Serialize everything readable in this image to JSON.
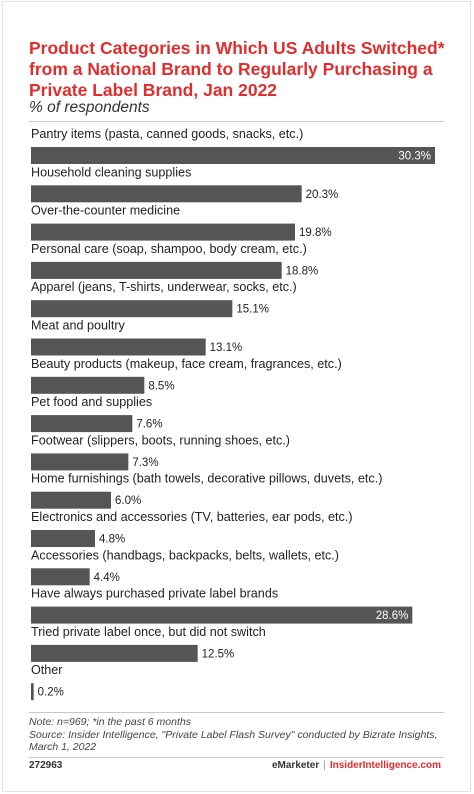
{
  "title": "Product Categories in Which US Adults Switched* from a National Brand to Regularly Purchasing a Private Label Brand, Jan 2022",
  "subtitle": "% of respondents",
  "colors": {
    "bar": "#555555",
    "title": "#e32d2d"
  },
  "chart_data": {
    "type": "bar",
    "orientation": "horizontal",
    "title": "Product Categories in Which US Adults Switched* from a National Brand to Regularly Purchasing a Private Label Brand, Jan 2022",
    "ylabel": "% of respondents",
    "xlim": [
      0,
      30.3
    ],
    "grid": false,
    "categories": [
      "Pantry items (pasta, canned goods, snacks, etc.)",
      "Household cleaning supplies",
      "Over-the-counter medicine",
      "Personal care (soap, shampoo, body cream, etc.)",
      "Apparel (jeans, T-shirts, underwear, socks, etc.)",
      "Meat and poultry",
      "Beauty products (makeup, face cream, fragrances, etc.)",
      "Pet food and supplies",
      "Footwear (slippers, boots, running shoes, etc.)",
      "Home furnishings (bath towels, decorative pillows, duvets, etc.)",
      "Electronics and accessories (TV, batteries, ear pods, etc.)",
      "Accessories (handbags, backpacks, belts, wallets, etc.)",
      "Have always purchased private label brands",
      "Tried private label once, but did not switch",
      "Other"
    ],
    "values": [
      30.3,
      20.3,
      19.8,
      18.8,
      15.1,
      13.1,
      8.5,
      7.6,
      7.3,
      6.0,
      4.8,
      4.4,
      28.6,
      12.5,
      0.2
    ],
    "value_labels": [
      "30.3%",
      "20.3%",
      "19.8%",
      "18.8%",
      "15.1%",
      "13.1%",
      "8.5%",
      "7.6%",
      "7.3%",
      "6.0%",
      "4.8%",
      "4.4%",
      "28.6%",
      "12.5%",
      "0.2%"
    ]
  },
  "notes": {
    "note": "Note: n=969; *in the past 6 months",
    "source": "Source: Insider Intelligence, \"Private Label Flash Survey\" conducted by Bizrate Insights, March 1, 2022"
  },
  "footer": {
    "chart_id": "272963",
    "brand_left": "eMarketer",
    "separator": "|",
    "brand_right": "InsiderIntelligence.com"
  }
}
